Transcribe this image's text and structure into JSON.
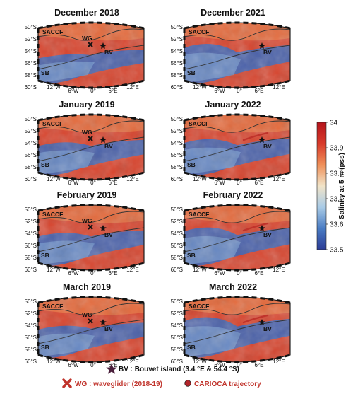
{
  "panels": [
    {
      "title": "December 2018",
      "column": 0,
      "row": 0,
      "labels": {
        "front1": "SACCF",
        "front2": "SB",
        "bouvet": "BV",
        "glider": "WG"
      },
      "has_glider": true,
      "has_trajectory": false,
      "blue_level": 0.25
    },
    {
      "title": "December 2021",
      "column": 1,
      "row": 0,
      "labels": {
        "front1": "SACCF",
        "front2": "SB",
        "bouvet": "BV"
      },
      "has_glider": false,
      "has_trajectory": false,
      "blue_level": 0.75
    },
    {
      "title": "January 2019",
      "column": 0,
      "row": 1,
      "labels": {
        "front1": "SACCF",
        "front2": "SB",
        "bouvet": "BV",
        "glider": "WG"
      },
      "has_glider": true,
      "has_trajectory": false,
      "blue_level": 0.45
    },
    {
      "title": "January 2022",
      "column": 1,
      "row": 1,
      "labels": {
        "front1": "SACCF",
        "front2": "SB",
        "bouvet": "BV"
      },
      "has_glider": false,
      "has_trajectory": true,
      "blue_level": 0.6
    },
    {
      "title": "February 2019",
      "column": 0,
      "row": 2,
      "labels": {
        "front1": "SACCF",
        "front2": "SB",
        "bouvet": "BV",
        "glider": "WG"
      },
      "has_glider": true,
      "has_trajectory": false,
      "blue_level": 0.45
    },
    {
      "title": "February 2022",
      "column": 1,
      "row": 2,
      "labels": {
        "front1": "SACCF",
        "front2": "SB",
        "bouvet": "BV"
      },
      "has_glider": false,
      "has_trajectory": true,
      "blue_level": 0.7
    },
    {
      "title": "March 2019",
      "column": 0,
      "row": 3,
      "labels": {
        "front1": "SACCF",
        "front2": "SB",
        "bouvet": "BV",
        "glider": "WG"
      },
      "has_glider": true,
      "has_trajectory": false,
      "blue_level": 0.4
    },
    {
      "title": "March 2022",
      "column": 1,
      "row": 3,
      "labels": {
        "front1": "SACCF",
        "front2": "SB",
        "bouvet": "BV"
      },
      "has_glider": false,
      "has_trajectory": true,
      "blue_level": 0.8
    }
  ],
  "lat_ticks": [
    "50°S",
    "52°S",
    "54°S",
    "56°S",
    "58°S",
    "60°S"
  ],
  "lon_ticks": [
    "12°W",
    "6°W",
    "0°",
    "6°E",
    "12°E"
  ],
  "colorbar": {
    "label": "Salinity at 5 m (pss)",
    "ticks": [
      "34",
      "33.9",
      "33.8",
      "33.7",
      "33.6",
      "33.5"
    ],
    "min": 33.5,
    "max": 34,
    "colors": [
      "#2c3c96",
      "#4a7cc4",
      "#a9cbe6",
      "#f1e4c8",
      "#ef8f58",
      "#d83a2a",
      "#b5141c"
    ]
  },
  "legend": {
    "bouvet": "BV : Bouvet island (3.4 °E & 54.4 °S)",
    "glider": "WG : waveglider (2018-19)",
    "carioca": "CARIOCA trajectory"
  },
  "colors": {
    "bouvet_star": "#4a1f3c",
    "glider": "#c0332b",
    "carioca": "#c0332b",
    "legend_red_text": "#c0332b"
  }
}
